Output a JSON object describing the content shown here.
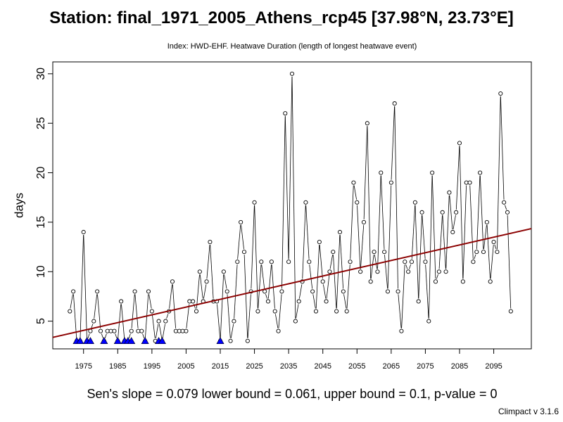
{
  "title": "Station: final_1971_2005_Athens_rcp45 [37.98°N, 23.73°E]",
  "subtitle": "Index: HWD-EHF. Heatwave Duration (length of longest heatwave event)",
  "stats": {
    "slope": "Sen's slope = 0.079",
    "lower": "lower bound = 0.061,",
    "upper": "upper bound = 0.1,",
    "pvalue": "p-value = 0"
  },
  "version": "Climpact v 3.1.6",
  "chart_data": {
    "type": "line",
    "ylabel": "days",
    "xlabel": "",
    "xlim": [
      1966,
      2106
    ],
    "ylim": [
      2.2,
      31.2
    ],
    "xticks": [
      1975,
      1985,
      1995,
      2005,
      2015,
      2025,
      2035,
      2045,
      2055,
      2065,
      2075,
      2085,
      2095
    ],
    "yticks": [
      5,
      10,
      15,
      20,
      25,
      30
    ],
    "series": [
      {
        "x": [
          1971,
          1972,
          1973,
          1974,
          1975,
          1976,
          1977,
          1978,
          1979,
          1980,
          1981,
          1982,
          1983,
          1984,
          1985,
          1986,
          1987,
          1988,
          1989,
          1990,
          1991,
          1992,
          1993,
          1994,
          1995,
          1996,
          1997,
          1998,
          1999,
          2000,
          2001,
          2002,
          2003,
          2004,
          2005,
          2006,
          2007,
          2008,
          2009,
          2010,
          2011,
          2012,
          2013,
          2014,
          2015,
          2016,
          2017,
          2018,
          2019,
          2020,
          2021,
          2022,
          2023,
          2024,
          2025,
          2026,
          2027,
          2028,
          2029,
          2030,
          2031,
          2032,
          2033,
          2034,
          2035,
          2036,
          2037,
          2038,
          2039,
          2040,
          2041,
          2042,
          2043,
          2044,
          2045,
          2046,
          2047,
          2048,
          2049,
          2050,
          2051,
          2052,
          2053,
          2054,
          2055,
          2056,
          2057,
          2058,
          2059,
          2060,
          2061,
          2062,
          2063,
          2064,
          2065,
          2066,
          2067,
          2068,
          2069,
          2070,
          2071,
          2072,
          2073,
          2074,
          2075,
          2076,
          2077,
          2078,
          2079,
          2080,
          2081,
          2082,
          2083,
          2084,
          2085,
          2086,
          2087,
          2088,
          2089,
          2090,
          2091,
          2092,
          2093,
          2094,
          2095,
          2096,
          2097,
          2098,
          2099,
          2100
        ],
        "values": [
          6,
          8,
          3,
          3,
          14,
          3,
          4,
          5,
          8,
          4,
          3,
          4,
          4,
          4,
          3,
          7,
          3,
          3,
          4,
          8,
          4,
          4,
          3,
          8,
          6,
          3,
          5,
          3,
          5,
          6,
          9,
          4,
          4,
          4,
          4,
          7,
          7,
          6,
          10,
          7,
          9,
          13,
          7,
          7,
          3,
          10,
          8,
          3,
          5,
          11,
          15,
          12,
          3,
          8,
          17,
          6,
          11,
          8,
          7,
          11,
          6,
          4,
          8,
          26,
          11,
          30,
          5,
          7,
          9,
          17,
          11,
          8,
          6,
          13,
          9,
          7,
          10,
          12,
          6,
          14,
          8,
          6,
          11,
          19,
          17,
          10,
          15,
          25,
          9,
          12,
          10,
          20,
          12,
          8,
          19,
          27,
          8,
          4,
          11,
          10,
          11,
          17,
          7,
          16,
          11,
          5,
          20,
          9,
          10,
          16,
          10,
          18,
          14,
          16,
          23,
          9,
          19,
          19,
          11,
          12,
          20,
          12,
          15,
          9,
          13,
          12,
          28,
          17,
          16,
          6
        ],
        "markers_on_axis": [
          1973,
          1974,
          1976,
          1977,
          1981,
          1985,
          1987,
          1988,
          1989,
          1993,
          1997,
          1998,
          2015
        ]
      }
    ],
    "trend": {
      "slope": 0.079,
      "x": [
        1966,
        2106
      ],
      "y": [
        3.36,
        14.35
      ],
      "color": "#8b0000"
    },
    "marker_color": "#0000ff"
  }
}
